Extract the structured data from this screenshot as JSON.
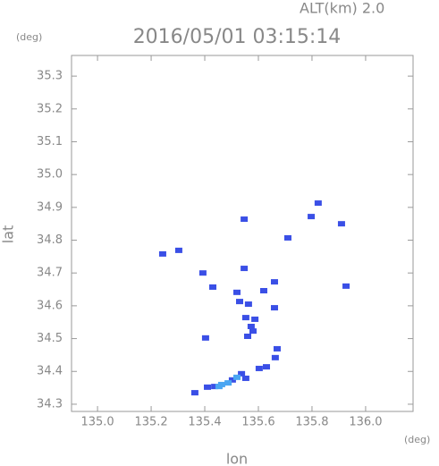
{
  "chart_data": {
    "type": "scatter",
    "title": "2016/05/01 03:15:14",
    "subtitle": "ALT(km) 2.0",
    "y_unit": "(deg)",
    "x_unit": "(deg)",
    "xlabel": "lon",
    "ylabel": "lat",
    "xlim": [
      134.903,
      136.177
    ],
    "ylim": [
      34.278,
      35.363
    ],
    "xticks": [
      {
        "value": 135.0,
        "label": "135.0"
      },
      135.2,
      135.4,
      135.6,
      135.8,
      {
        "value": 136.0,
        "label": "136.0"
      }
    ],
    "yticks": [
      34.3,
      34.4,
      34.5,
      34.6,
      34.7,
      34.8,
      34.9,
      {
        "value": 35.0,
        "label": "35.0"
      },
      35.1,
      35.2,
      35.3
    ],
    "series": [
      {
        "color": "#3a4fe6",
        "x": [
          135.243,
          135.303,
          135.823,
          135.91,
          135.71,
          135.927,
          135.43,
          135.52,
          135.53,
          135.66,
          135.62,
          135.563,
          135.553,
          135.587,
          135.573,
          135.403,
          135.56,
          135.66,
          135.58,
          135.547,
          135.663,
          135.67,
          135.63,
          135.603,
          135.537,
          135.503,
          135.553,
          135.437,
          135.41,
          135.363,
          135.393,
          135.547,
          135.797
        ],
        "values": [
          34.758,
          34.769,
          34.913,
          34.85,
          34.807,
          34.66,
          34.657,
          34.641,
          34.613,
          34.673,
          34.646,
          34.605,
          34.564,
          34.559,
          34.537,
          34.502,
          34.507,
          34.594,
          34.523,
          34.714,
          34.442,
          34.469,
          34.414,
          34.409,
          34.393,
          34.374,
          34.379,
          34.354,
          34.352,
          34.335,
          34.7,
          34.864,
          34.872
        ]
      },
      {
        "color": "#4aa6f2",
        "x": [
          135.52,
          135.487,
          135.463,
          135.453
        ],
        "values": [
          34.382,
          34.365,
          34.36,
          34.354
        ]
      }
    ]
  }
}
